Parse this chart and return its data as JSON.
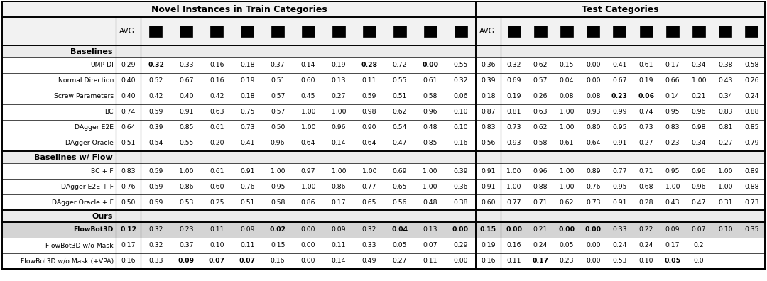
{
  "title_left": "Novel Instances in Train Categories",
  "title_right": "Test Categories",
  "rows": [
    {
      "name": "UMP-DI",
      "section": "Baselines",
      "bold_name": false,
      "left": [
        "0.29",
        "0.32",
        "0.33",
        "0.16",
        "0.18",
        "0.37",
        "0.14",
        "0.19",
        "0.28",
        "0.72",
        "0.00",
        "0.55"
      ],
      "left_bold": [
        false,
        true,
        false,
        false,
        false,
        false,
        false,
        false,
        true,
        false,
        true,
        false
      ],
      "right": [
        "0.36",
        "0.32",
        "0.62",
        "0.15",
        "0.00",
        "0.41",
        "0.61",
        "0.17",
        "0.34",
        "0.38",
        "0.58"
      ],
      "right_bold": [
        false,
        false,
        false,
        false,
        false,
        false,
        false,
        false,
        false,
        false,
        false
      ]
    },
    {
      "name": "Normal Direction",
      "section": "Baselines",
      "bold_name": false,
      "left": [
        "0.40",
        "0.52",
        "0.67",
        "0.16",
        "0.19",
        "0.51",
        "0.60",
        "0.13",
        "0.11",
        "0.55",
        "0.61",
        "0.32"
      ],
      "left_bold": [
        false,
        false,
        false,
        false,
        false,
        false,
        false,
        false,
        false,
        false,
        false,
        false
      ],
      "right": [
        "0.39",
        "0.69",
        "0.57",
        "0.04",
        "0.00",
        "0.67",
        "0.19",
        "0.66",
        "1.00",
        "0.43",
        "0.26"
      ],
      "right_bold": [
        false,
        false,
        false,
        false,
        false,
        false,
        false,
        false,
        false,
        false,
        false
      ]
    },
    {
      "name": "Screw Parameters",
      "section": "Baselines",
      "bold_name": false,
      "left": [
        "0.40",
        "0.42",
        "0.40",
        "0.42",
        "0.18",
        "0.57",
        "0.45",
        "0.27",
        "0.59",
        "0.51",
        "0.58",
        "0.06"
      ],
      "left_bold": [
        false,
        false,
        false,
        false,
        false,
        false,
        false,
        false,
        false,
        false,
        false,
        false
      ],
      "right": [
        "0.18",
        "0.19",
        "0.26",
        "0.08",
        "0.08",
        "0.23",
        "0.06",
        "0.14",
        "0.21",
        "0.34",
        "0.24"
      ],
      "right_bold": [
        false,
        false,
        false,
        false,
        false,
        true,
        true,
        false,
        false,
        false,
        false
      ]
    },
    {
      "name": "BC",
      "section": "Baselines",
      "bold_name": false,
      "left": [
        "0.74",
        "0.59",
        "0.91",
        "0.63",
        "0.75",
        "0.57",
        "1.00",
        "1.00",
        "0.98",
        "0.62",
        "0.96",
        "0.10"
      ],
      "left_bold": [
        false,
        false,
        false,
        false,
        false,
        false,
        false,
        false,
        false,
        false,
        false,
        false
      ],
      "right": [
        "0.87",
        "0.81",
        "0.63",
        "1.00",
        "0.93",
        "0.99",
        "0.74",
        "0.95",
        "0.96",
        "0.83",
        "0.88"
      ],
      "right_bold": [
        false,
        false,
        false,
        false,
        false,
        false,
        false,
        false,
        false,
        false,
        false
      ]
    },
    {
      "name": "DAgger E2E",
      "section": "Baselines",
      "bold_name": false,
      "left": [
        "0.64",
        "0.39",
        "0.85",
        "0.61",
        "0.73",
        "0.50",
        "1.00",
        "0.96",
        "0.90",
        "0.54",
        "0.48",
        "0.10"
      ],
      "left_bold": [
        false,
        false,
        false,
        false,
        false,
        false,
        false,
        false,
        false,
        false,
        false,
        false
      ],
      "right": [
        "0.83",
        "0.73",
        "0.62",
        "1.00",
        "0.80",
        "0.95",
        "0.73",
        "0.83",
        "0.98",
        "0.81",
        "0.85"
      ],
      "right_bold": [
        false,
        false,
        false,
        false,
        false,
        false,
        false,
        false,
        false,
        false,
        false
      ]
    },
    {
      "name": "DAgger Oracle",
      "section": "Baselines",
      "bold_name": false,
      "left": [
        "0.51",
        "0.54",
        "0.55",
        "0.20",
        "0.41",
        "0.96",
        "0.64",
        "0.14",
        "0.64",
        "0.47",
        "0.85",
        "0.16"
      ],
      "left_bold": [
        false,
        false,
        false,
        false,
        false,
        false,
        false,
        false,
        false,
        false,
        false,
        false
      ],
      "right": [
        "0.56",
        "0.93",
        "0.58",
        "0.61",
        "0.64",
        "0.91",
        "0.27",
        "0.23",
        "0.34",
        "0.27",
        "0.79"
      ],
      "right_bold": [
        false,
        false,
        false,
        false,
        false,
        false,
        false,
        false,
        false,
        false,
        false
      ]
    },
    {
      "name": "BC + F",
      "section": "Baselines w/ Flow",
      "bold_name": false,
      "left": [
        "0.83",
        "0.59",
        "1.00",
        "0.61",
        "0.91",
        "1.00",
        "0.97",
        "1.00",
        "1.00",
        "0.69",
        "1.00",
        "0.39"
      ],
      "left_bold": [
        false,
        false,
        false,
        false,
        false,
        false,
        false,
        false,
        false,
        false,
        false,
        false
      ],
      "right": [
        "0.91",
        "1.00",
        "0.96",
        "1.00",
        "0.89",
        "0.77",
        "0.71",
        "0.95",
        "0.96",
        "1.00",
        "0.89"
      ],
      "right_bold": [
        false,
        false,
        false,
        false,
        false,
        false,
        false,
        false,
        false,
        false,
        false
      ]
    },
    {
      "name": "DAgger E2E + F",
      "section": "Baselines w/ Flow",
      "bold_name": false,
      "left": [
        "0.76",
        "0.59",
        "0.86",
        "0.60",
        "0.76",
        "0.95",
        "1.00",
        "0.86",
        "0.77",
        "0.65",
        "1.00",
        "0.36"
      ],
      "left_bold": [
        false,
        false,
        false,
        false,
        false,
        false,
        false,
        false,
        false,
        false,
        false,
        false
      ],
      "right": [
        "0.91",
        "1.00",
        "0.88",
        "1.00",
        "0.76",
        "0.95",
        "0.68",
        "1.00",
        "0.96",
        "1.00",
        "0.88"
      ],
      "right_bold": [
        false,
        false,
        false,
        false,
        false,
        false,
        false,
        false,
        false,
        false,
        false
      ]
    },
    {
      "name": "DAgger Oracle + F",
      "section": "Baselines w/ Flow",
      "bold_name": false,
      "left": [
        "0.50",
        "0.59",
        "0.53",
        "0.25",
        "0.51",
        "0.58",
        "0.86",
        "0.17",
        "0.65",
        "0.56",
        "0.48",
        "0.38"
      ],
      "left_bold": [
        false,
        false,
        false,
        false,
        false,
        false,
        false,
        false,
        false,
        false,
        false,
        false
      ],
      "right": [
        "0.60",
        "0.77",
        "0.71",
        "0.62",
        "0.73",
        "0.91",
        "0.28",
        "0.43",
        "0.47",
        "0.31",
        "0.73"
      ],
      "right_bold": [
        false,
        false,
        false,
        false,
        false,
        false,
        false,
        false,
        false,
        false,
        false
      ]
    },
    {
      "name": "FlowBot3D",
      "section": "Ours",
      "bold_name": true,
      "left": [
        "0.12",
        "0.32",
        "0.23",
        "0.11",
        "0.09",
        "0.02",
        "0.00",
        "0.09",
        "0.32",
        "0.04",
        "0.13",
        "0.00"
      ],
      "left_bold": [
        true,
        false,
        false,
        false,
        false,
        true,
        false,
        false,
        false,
        true,
        false,
        true
      ],
      "right": [
        "0.15",
        "0.00",
        "0.21",
        "0.00",
        "0.00",
        "0.33",
        "0.22",
        "0.09",
        "0.07",
        "0.10",
        "0.35"
      ],
      "right_bold": [
        true,
        true,
        false,
        true,
        true,
        false,
        false,
        false,
        false,
        false,
        false
      ]
    },
    {
      "name": "FlowBot3D w/o Mask",
      "section": "Ours",
      "bold_name": false,
      "left": [
        "0.17",
        "0.32",
        "0.37",
        "0.10",
        "0.11",
        "0.15",
        "0.00",
        "0.11",
        "0.33",
        "0.05",
        "0.07",
        "0.29"
      ],
      "left_bold": [
        false,
        false,
        false,
        false,
        false,
        false,
        false,
        false,
        false,
        false,
        false,
        false
      ],
      "right": [
        "0.19",
        "0.16",
        "0.24",
        "0.05",
        "0.00",
        "0.24",
        "0.24",
        "0.17",
        "0.2",
        "",
        ""
      ],
      "right_bold": [
        false,
        false,
        false,
        false,
        false,
        false,
        false,
        false,
        false,
        false,
        false
      ]
    },
    {
      "name": "FlowBot3D w/o Mask (+VPA)",
      "section": "Ours",
      "bold_name": false,
      "left": [
        "0.16",
        "0.33",
        "0.09",
        "0.07",
        "0.07",
        "0.16",
        "0.00",
        "0.14",
        "0.49",
        "0.27",
        "0.11",
        "0.00"
      ],
      "left_bold": [
        false,
        false,
        true,
        true,
        true,
        false,
        false,
        false,
        false,
        false,
        false,
        false
      ],
      "right": [
        "0.16",
        "0.11",
        "0.17",
        "0.23",
        "0.00",
        "0.53",
        "0.10",
        "0.05",
        "0.0",
        "",
        ""
      ],
      "right_bold": [
        false,
        false,
        true,
        false,
        false,
        false,
        false,
        true,
        false,
        false,
        false
      ]
    }
  ],
  "section_rows": {
    "Baselines": 0,
    "Baselines w/ Flow": 6,
    "Ours": 9
  },
  "highlight_row": 9
}
